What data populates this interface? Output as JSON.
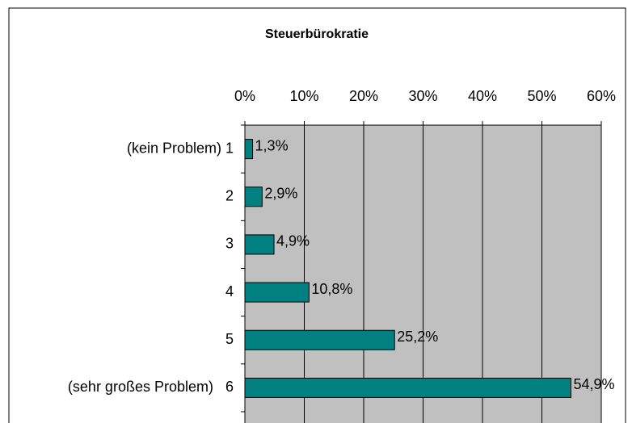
{
  "chart_data": {
    "type": "bar",
    "orientation": "horizontal",
    "title": "Steuerbürokratie",
    "categories": [
      "(kein Problem) 1",
      "2",
      "3",
      "4",
      "5",
      "(sehr großes Problem)   6"
    ],
    "values": [
      1.3,
      2.9,
      4.9,
      10.8,
      25.2,
      54.9
    ],
    "value_labels": [
      "1,3%",
      "2,9%",
      "4,9%",
      "10,8%",
      "25,2%",
      "54,9%"
    ],
    "color": "#008080",
    "xlim": [
      0,
      60
    ],
    "xticks": [
      {
        "value": 0,
        "label": "0%"
      },
      {
        "value": 10,
        "label": "10%"
      },
      {
        "value": 20,
        "label": "20%"
      },
      {
        "value": 30,
        "label": "30%"
      },
      {
        "value": 40,
        "label": "40%"
      },
      {
        "value": 50,
        "label": "50%"
      },
      {
        "value": 60,
        "label": "60%"
      }
    ],
    "grid": true
  }
}
